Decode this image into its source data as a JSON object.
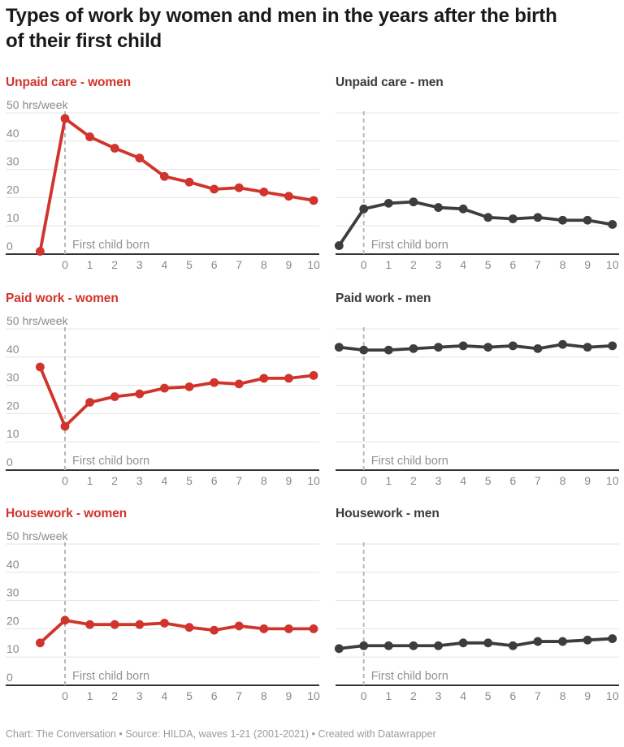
{
  "title": {
    "full": "Types of work by women and men in the years after the birth of their first child",
    "line1": "Types of work by women and men in the years after the birth",
    "line2": "of their first child"
  },
  "footer": "Chart: The Conversation • Source: HILDA, waves 1-21 (2001-2021) • Created with Datawrapper",
  "colors": {
    "women": "#d0342c",
    "men": "#3d3d3d",
    "title": "#1a1a1a",
    "axis_label": "#8a8a8a",
    "annotation": "#929292",
    "gridline": "#e3e3e3",
    "zero_axis": "#333333",
    "dashed_line": "#b8b8b8",
    "footer": "#9b9b9b"
  },
  "chart_data": [
    {
      "type": "line",
      "title": "Unpaid care - women",
      "series_group": "women",
      "x": [
        -1,
        0,
        1,
        2,
        3,
        4,
        5,
        6,
        7,
        8,
        9,
        10
      ],
      "values": [
        1,
        48,
        41.5,
        37.5,
        34,
        27.5,
        25.5,
        23,
        23.5,
        22,
        20.5,
        19
      ],
      "unit_label": "50 hrs/week",
      "annotation": "First child born",
      "x_tick_labels": [
        "0",
        "1",
        "2",
        "3",
        "4",
        "5",
        "6",
        "7",
        "8",
        "9",
        "10"
      ],
      "y_ticks": [
        0,
        10,
        20,
        30,
        40,
        50
      ],
      "ylim": [
        0,
        50
      ],
      "show_y_labels": true
    },
    {
      "type": "line",
      "title": "Unpaid care - men",
      "series_group": "men",
      "x": [
        -1,
        0,
        1,
        2,
        3,
        4,
        5,
        6,
        7,
        8,
        9,
        10
      ],
      "values": [
        3,
        16,
        18,
        18.5,
        16.5,
        16,
        13,
        12.5,
        13,
        12,
        12,
        10.5
      ],
      "unit_label": "",
      "annotation": "First child born",
      "x_tick_labels": [
        "0",
        "1",
        "2",
        "3",
        "4",
        "5",
        "6",
        "7",
        "8",
        "9",
        "10"
      ],
      "y_ticks": [
        0,
        10,
        20,
        30,
        40,
        50
      ],
      "ylim": [
        0,
        50
      ],
      "show_y_labels": false
    },
    {
      "type": "line",
      "title": "Paid work - women",
      "series_group": "women",
      "x": [
        -1,
        0,
        1,
        2,
        3,
        4,
        5,
        6,
        7,
        8,
        9,
        10
      ],
      "values": [
        36.5,
        15.5,
        24,
        26,
        27,
        29,
        29.5,
        31,
        30.5,
        32.5,
        32.5,
        33.5
      ],
      "unit_label": "50 hrs/week",
      "annotation": "First child born",
      "x_tick_labels": [
        "0",
        "1",
        "2",
        "3",
        "4",
        "5",
        "6",
        "7",
        "8",
        "9",
        "10"
      ],
      "y_ticks": [
        0,
        10,
        20,
        30,
        40,
        50
      ],
      "ylim": [
        0,
        50
      ],
      "show_y_labels": true
    },
    {
      "type": "line",
      "title": "Paid work - men",
      "series_group": "men",
      "x": [
        -1,
        0,
        1,
        2,
        3,
        4,
        5,
        6,
        7,
        8,
        9,
        10
      ],
      "values": [
        43.5,
        42.5,
        42.5,
        43,
        43.5,
        44,
        43.5,
        44,
        43,
        44.5,
        43.5,
        44
      ],
      "unit_label": "",
      "annotation": "First child born",
      "x_tick_labels": [
        "0",
        "1",
        "2",
        "3",
        "4",
        "5",
        "6",
        "7",
        "8",
        "9",
        "10"
      ],
      "y_ticks": [
        0,
        10,
        20,
        30,
        40,
        50
      ],
      "ylim": [
        0,
        50
      ],
      "show_y_labels": false
    },
    {
      "type": "line",
      "title": "Housework - women",
      "series_group": "women",
      "x": [
        -1,
        0,
        1,
        2,
        3,
        4,
        5,
        6,
        7,
        8,
        9,
        10
      ],
      "values": [
        15,
        23,
        21.5,
        21.5,
        21.5,
        22,
        20.5,
        19.5,
        21,
        20,
        20,
        20
      ],
      "unit_label": "50 hrs/week",
      "annotation": "First child born",
      "x_tick_labels": [
        "0",
        "1",
        "2",
        "3",
        "4",
        "5",
        "6",
        "7",
        "8",
        "9",
        "10"
      ],
      "y_ticks": [
        0,
        10,
        20,
        30,
        40,
        50
      ],
      "ylim": [
        0,
        50
      ],
      "show_y_labels": true
    },
    {
      "type": "line",
      "title": "Housework - men",
      "series_group": "men",
      "x": [
        -1,
        0,
        1,
        2,
        3,
        4,
        5,
        6,
        7,
        8,
        9,
        10
      ],
      "values": [
        13,
        14,
        14,
        14,
        14,
        15,
        15,
        14,
        15.5,
        15.5,
        16,
        16.5
      ],
      "unit_label": "",
      "annotation": "First child born",
      "x_tick_labels": [
        "0",
        "1",
        "2",
        "3",
        "4",
        "5",
        "6",
        "7",
        "8",
        "9",
        "10"
      ],
      "y_ticks": [
        0,
        10,
        20,
        30,
        40,
        50
      ],
      "ylim": [
        0,
        50
      ],
      "show_y_labels": false
    }
  ]
}
